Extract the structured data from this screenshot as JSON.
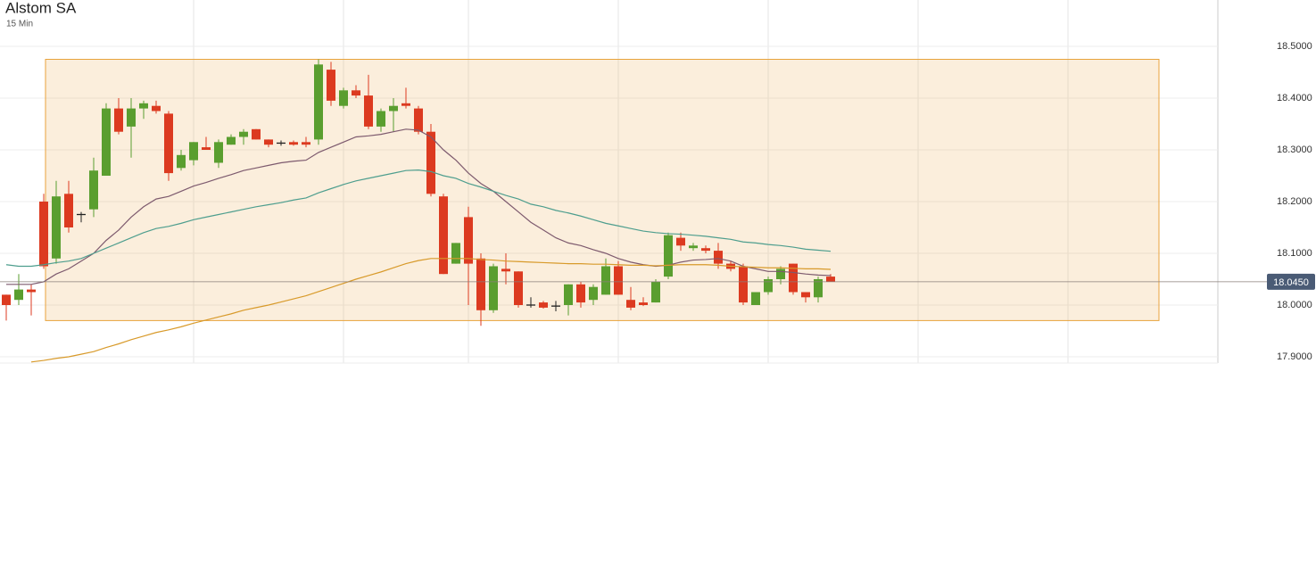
{
  "chart_data": {
    "type": "candlestick",
    "title": "Alstom SA",
    "subtitle": "15 Min",
    "up_color": "#5a9e2f",
    "down_color": "#dc3a20",
    "grid": true,
    "ylim": [
      17.9,
      18.5
    ],
    "yticks": [
      {
        "value": 17.9,
        "label": "17.9000"
      },
      {
        "value": 18.0,
        "label": "18.0000"
      },
      {
        "value": 18.1,
        "label": "18.1000"
      },
      {
        "value": 18.2,
        "label": "18.2000"
      },
      {
        "value": 18.3,
        "label": "18.3000"
      },
      {
        "value": 18.4,
        "label": "18.4000"
      },
      {
        "value": 18.5,
        "label": "18.5000"
      }
    ],
    "open": [
      18.02,
      18.01,
      18.03,
      18.2,
      18.09,
      18.215,
      18.175,
      18.185,
      18.25,
      18.38,
      18.345,
      18.38,
      18.385,
      18.37,
      18.265,
      18.28,
      18.305,
      18.275,
      18.31,
      18.325,
      18.34,
      18.32,
      18.313,
      18.315,
      18.315,
      18.32,
      18.455,
      18.385,
      18.415,
      18.405,
      18.345,
      18.375,
      18.39,
      18.38,
      18.335,
      18.21,
      18.08,
      18.17,
      18.09,
      17.99,
      18.07,
      18.065,
      18.0,
      18.005,
      17.998,
      18.0,
      18.04,
      18.01,
      18.02,
      18.075,
      18.01,
      18.005,
      18.005,
      18.055,
      18.13,
      18.11,
      18.11,
      18.105,
      18.08,
      18.075,
      18.0,
      18.025,
      18.05,
      18.08,
      18.025,
      18.015,
      18.055
    ],
    "high": [
      18.02,
      18.06,
      18.04,
      18.215,
      18.24,
      18.24,
      18.18,
      18.285,
      18.39,
      18.4,
      18.4,
      18.395,
      18.395,
      18.375,
      18.3,
      18.315,
      18.325,
      18.32,
      18.33,
      18.34,
      18.34,
      18.32,
      18.318,
      18.318,
      18.325,
      18.475,
      18.47,
      18.42,
      18.425,
      18.445,
      18.38,
      18.4,
      18.42,
      18.385,
      18.35,
      18.215,
      18.12,
      18.19,
      18.1,
      18.08,
      18.1,
      18.065,
      18.015,
      18.008,
      18.008,
      18.04,
      18.045,
      18.04,
      18.09,
      18.085,
      18.035,
      18.015,
      18.05,
      18.14,
      18.14,
      18.12,
      18.115,
      18.12,
      18.085,
      18.08,
      18.025,
      18.055,
      18.075,
      18.08,
      18.025,
      18.055,
      18.06
    ],
    "low": [
      17.97,
      18.0,
      17.98,
      18.07,
      18.08,
      18.14,
      18.16,
      18.17,
      18.25,
      18.33,
      18.285,
      18.36,
      18.37,
      18.24,
      18.26,
      18.27,
      18.3,
      18.265,
      18.31,
      18.31,
      18.32,
      18.305,
      18.308,
      18.308,
      18.305,
      18.31,
      18.385,
      18.38,
      18.4,
      18.34,
      18.335,
      18.335,
      18.38,
      18.33,
      18.21,
      18.06,
      18.08,
      18.0,
      17.96,
      17.985,
      18.04,
      17.995,
      17.995,
      17.993,
      17.988,
      17.98,
      17.995,
      18.0,
      18.02,
      18.02,
      17.99,
      17.998,
      18.005,
      18.05,
      18.105,
      18.105,
      18.1,
      18.07,
      18.065,
      18.0,
      18.0,
      18.02,
      18.04,
      18.02,
      18.005,
      18.005,
      18.045
    ],
    "close": [
      18.0,
      18.03,
      18.025,
      18.075,
      18.21,
      18.15,
      18.175,
      18.26,
      18.38,
      18.335,
      18.38,
      18.39,
      18.375,
      18.255,
      18.29,
      18.315,
      18.3,
      18.315,
      18.325,
      18.335,
      18.32,
      18.31,
      18.313,
      18.31,
      18.31,
      18.465,
      18.395,
      18.415,
      18.405,
      18.345,
      18.375,
      18.385,
      18.385,
      18.335,
      18.215,
      18.06,
      18.12,
      18.08,
      17.99,
      18.075,
      18.065,
      18.0,
      18.0,
      17.995,
      17.998,
      18.04,
      18.005,
      18.035,
      18.075,
      18.02,
      17.995,
      18.0,
      18.045,
      18.135,
      18.115,
      18.115,
      18.105,
      18.08,
      18.07,
      18.005,
      18.025,
      18.05,
      18.07,
      18.025,
      18.015,
      18.05,
      18.045
    ],
    "series": [
      {
        "color": "#7d5a6e",
        "values": [
          18.04,
          18.04,
          18.04,
          18.045,
          18.06,
          18.07,
          18.085,
          18.1,
          18.125,
          18.145,
          18.17,
          18.19,
          18.205,
          18.21,
          18.22,
          18.23,
          18.237,
          18.245,
          18.252,
          18.26,
          18.265,
          18.27,
          18.275,
          18.278,
          18.28,
          18.295,
          18.305,
          18.315,
          18.325,
          18.327,
          18.33,
          18.335,
          18.34,
          18.338,
          18.325,
          18.3,
          18.28,
          18.255,
          18.235,
          18.22,
          18.2,
          18.18,
          18.16,
          18.145,
          18.13,
          18.12,
          18.115,
          18.107,
          18.1,
          18.09,
          18.083,
          18.078,
          18.075,
          18.077,
          18.083,
          18.087,
          18.088,
          18.09,
          18.085,
          18.075,
          18.07,
          18.065,
          18.065,
          18.063,
          18.06,
          18.058,
          18.057
        ]
      },
      {
        "color": "#4e9e8e",
        "values": [
          18.078,
          18.075,
          18.075,
          18.078,
          18.082,
          18.085,
          18.09,
          18.1,
          18.11,
          18.12,
          18.13,
          18.14,
          18.148,
          18.152,
          18.158,
          18.165,
          18.17,
          18.175,
          18.18,
          18.185,
          18.19,
          18.194,
          18.198,
          18.203,
          18.207,
          18.217,
          18.225,
          18.233,
          18.24,
          18.245,
          18.25,
          18.255,
          18.26,
          18.261,
          18.258,
          18.25,
          18.245,
          18.235,
          18.228,
          18.22,
          18.212,
          18.205,
          18.195,
          18.19,
          18.183,
          18.178,
          18.172,
          18.165,
          18.158,
          18.153,
          18.148,
          18.143,
          18.14,
          18.138,
          18.137,
          18.135,
          18.133,
          18.13,
          18.127,
          18.122,
          18.12,
          18.117,
          18.115,
          18.112,
          18.108,
          18.106,
          18.104
        ]
      },
      {
        "color": "#d89a2a",
        "values": [
          null,
          null,
          17.89,
          17.893,
          17.897,
          17.9,
          17.905,
          17.91,
          17.918,
          17.925,
          17.933,
          17.94,
          17.947,
          17.952,
          17.958,
          17.965,
          17.971,
          17.977,
          17.983,
          17.99,
          17.995,
          18.0,
          18.006,
          18.012,
          18.018,
          18.026,
          18.034,
          18.042,
          18.05,
          18.057,
          18.064,
          18.072,
          18.08,
          18.086,
          18.09,
          18.09,
          18.09,
          18.09,
          18.088,
          18.087,
          18.085,
          18.084,
          18.083,
          18.082,
          18.081,
          18.08,
          18.08,
          18.079,
          18.079,
          18.078,
          18.077,
          18.077,
          18.076,
          18.077,
          18.078,
          18.078,
          18.078,
          18.077,
          18.075,
          18.074,
          18.073,
          18.072,
          18.072,
          18.071,
          18.07,
          18.07,
          18.069
        ]
      }
    ],
    "zone": {
      "color": "#e8a33c",
      "range": [
        17.97,
        18.475
      ]
    },
    "last_price": {
      "value": 18.045,
      "label": "18.0450"
    }
  }
}
